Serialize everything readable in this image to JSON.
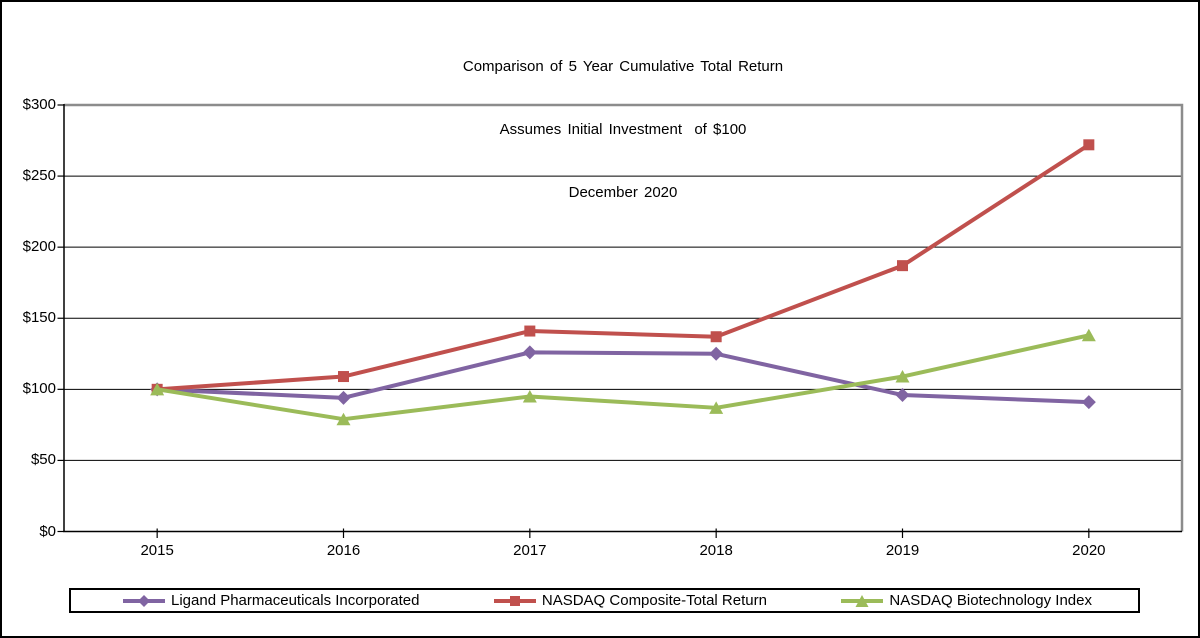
{
  "title": {
    "line1": "Comparison of 5 Year Cumulative Total Return",
    "line2": "Assumes Initial Investment  of $100",
    "line3": "December 2020"
  },
  "chart_data": {
    "type": "line",
    "title": "Comparison of 5 Year Cumulative Total Return",
    "subtitle": "Assumes Initial Investment of $100",
    "date_label": "December 2020",
    "categories": [
      "2015",
      "2016",
      "2017",
      "2018",
      "2019",
      "2020"
    ],
    "series": [
      {
        "name": "Ligand Pharmaceuticals Incorporated",
        "color": "#8064A2",
        "marker": "diamond",
        "values": [
          100,
          94,
          126,
          125,
          96,
          91
        ]
      },
      {
        "name": "NASDAQ Composite-Total Return",
        "color": "#C0504D",
        "marker": "square",
        "values": [
          100,
          109,
          141,
          137,
          187,
          272
        ]
      },
      {
        "name": "NASDAQ Biotechnology Index",
        "color": "#9BBB59",
        "marker": "triangle",
        "values": [
          100,
          79,
          95,
          87,
          109,
          138
        ]
      }
    ],
    "y_ticks": [
      "$0",
      "$50",
      "$100",
      "$150",
      "$200",
      "$250",
      "$300"
    ],
    "ylim": [
      0,
      300
    ],
    "y_tick_step": 50,
    "grid": true,
    "legend_position": "bottom",
    "colors": {
      "gridline": "#000000",
      "axis": "#000000",
      "plot_border": "#8C8C8C",
      "text": "#000000"
    }
  }
}
